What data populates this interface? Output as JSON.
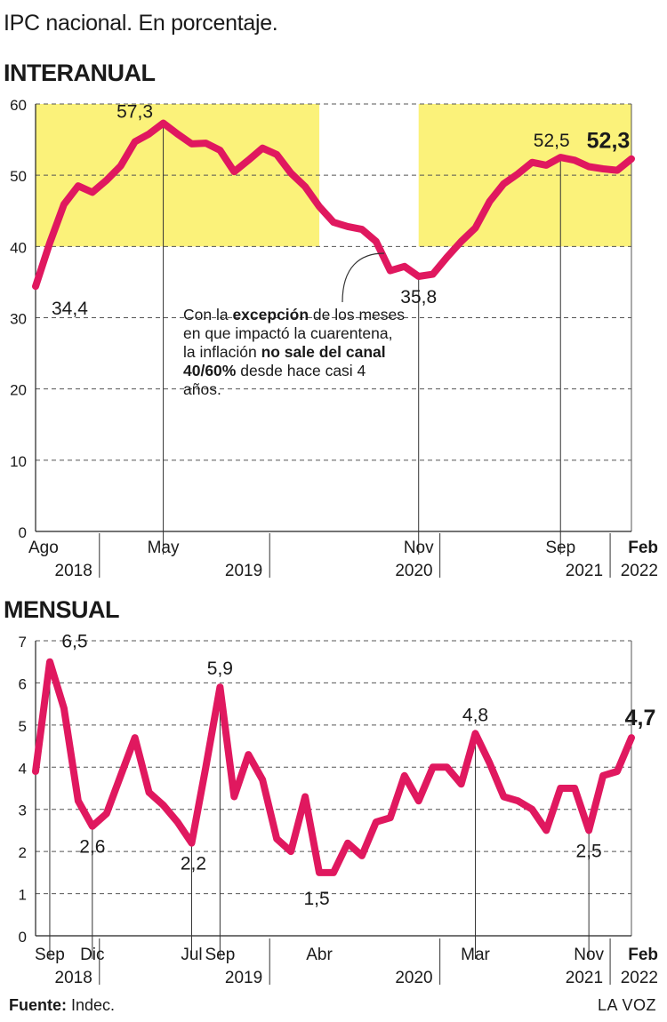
{
  "header": {
    "subtitle": "IPC nacional. En porcentaje.",
    "title_interanual": "INTERANUAL",
    "title_mensual": "MENSUAL"
  },
  "note": {
    "part1": "Con la ",
    "bold1": "excepción",
    "part2": " de los meses en que impactó la cuarentena, la inflación ",
    "bold2": "no sale del canal 40/60%",
    "part3": " desde hace casi 4 años."
  },
  "footer": {
    "source_label": "Fuente:",
    "source_value": " Indec.",
    "brand": "LA VOZ"
  },
  "colors": {
    "line": "#e0185f",
    "band": "#fbf27a",
    "grid": "#555555",
    "text": "#1a1a1a"
  },
  "chart_data": [
    {
      "type": "line",
      "name": "INTERANUAL",
      "ylim": [
        0,
        60
      ],
      "yticks": [
        0,
        10,
        20,
        30,
        40,
        50,
        60
      ],
      "bands": [
        {
          "from": "2018-08",
          "to": "2020-04",
          "y0": 40,
          "y1": 60
        },
        {
          "from": "2020-11",
          "to": "2022-02",
          "y0": 40,
          "y1": 60
        }
      ],
      "x": [
        "2018-08",
        "2018-09",
        "2018-10",
        "2018-11",
        "2018-12",
        "2019-01",
        "2019-02",
        "2019-03",
        "2019-04",
        "2019-05",
        "2019-06",
        "2019-07",
        "2019-08",
        "2019-09",
        "2019-10",
        "2019-11",
        "2019-12",
        "2020-01",
        "2020-02",
        "2020-03",
        "2020-04",
        "2020-05",
        "2020-06",
        "2020-07",
        "2020-08",
        "2020-09",
        "2020-10",
        "2020-11",
        "2020-12",
        "2021-01",
        "2021-02",
        "2021-03",
        "2021-04",
        "2021-05",
        "2021-06",
        "2021-07",
        "2021-08",
        "2021-09",
        "2021-10",
        "2021-11",
        "2021-12",
        "2022-01",
        "2022-02"
      ],
      "values": [
        34.4,
        40.5,
        45.9,
        48.5,
        47.6,
        49.3,
        51.3,
        54.7,
        55.8,
        57.3,
        55.8,
        54.4,
        54.5,
        53.5,
        50.5,
        52.1,
        53.8,
        52.9,
        50.3,
        48.4,
        45.6,
        43.4,
        42.8,
        42.4,
        40.7,
        36.6,
        37.2,
        35.8,
        36.1,
        38.5,
        40.7,
        42.6,
        46.3,
        48.8,
        50.2,
        51.8,
        51.4,
        52.5,
        52.1,
        51.2,
        50.9,
        50.7,
        52.3
      ],
      "data_labels": [
        {
          "x": "2018-08",
          "text": "34,4"
        },
        {
          "x": "2019-05",
          "text": "57,3"
        },
        {
          "x": "2020-11",
          "text": "35,8"
        },
        {
          "x": "2021-09",
          "text": "52,5"
        },
        {
          "x": "2022-02",
          "text": "52,3",
          "bold": true
        }
      ],
      "month_labels": [
        {
          "x": "2018-08",
          "text": "Ago"
        },
        {
          "x": "2019-05",
          "text": "May"
        },
        {
          "x": "2020-11",
          "text": "Nov"
        },
        {
          "x": "2021-09",
          "text": "Sep"
        },
        {
          "x": "2022-02",
          "text": "Feb",
          "bold": true
        }
      ],
      "year_labels": [
        "2018",
        "2019",
        "2020",
        "2021",
        "2022"
      ],
      "guides": [
        "2019-05",
        "2020-11",
        "2021-09"
      ]
    },
    {
      "type": "line",
      "name": "MENSUAL",
      "ylim": [
        0,
        7
      ],
      "yticks": [
        0,
        1,
        2,
        3,
        4,
        5,
        6,
        7
      ],
      "x": [
        "2018-08",
        "2018-09",
        "2018-10",
        "2018-11",
        "2018-12",
        "2019-01",
        "2019-02",
        "2019-03",
        "2019-04",
        "2019-05",
        "2019-06",
        "2019-07",
        "2019-08",
        "2019-09",
        "2019-10",
        "2019-11",
        "2019-12",
        "2020-01",
        "2020-02",
        "2020-03",
        "2020-04",
        "2020-05",
        "2020-06",
        "2020-07",
        "2020-08",
        "2020-09",
        "2020-10",
        "2020-11",
        "2020-12",
        "2021-01",
        "2021-02",
        "2021-03",
        "2021-04",
        "2021-05",
        "2021-06",
        "2021-07",
        "2021-08",
        "2021-09",
        "2021-10",
        "2021-11",
        "2021-12",
        "2022-01",
        "2022-02"
      ],
      "values": [
        3.9,
        6.5,
        5.4,
        3.2,
        2.6,
        2.9,
        3.8,
        4.7,
        3.4,
        3.1,
        2.7,
        2.2,
        4.0,
        5.9,
        3.3,
        4.3,
        3.7,
        2.3,
        2.0,
        3.3,
        1.5,
        1.5,
        2.2,
        1.9,
        2.7,
        2.8,
        3.8,
        3.2,
        4.0,
        4.0,
        3.6,
        4.8,
        4.1,
        3.3,
        3.2,
        3.0,
        2.5,
        3.5,
        3.5,
        2.5,
        3.8,
        3.9,
        4.7
      ],
      "data_labels": [
        {
          "x": "2018-09",
          "text": "6,5"
        },
        {
          "x": "2018-12",
          "text": "2,6"
        },
        {
          "x": "2019-07",
          "text": "2,2"
        },
        {
          "x": "2019-09",
          "text": "5,9"
        },
        {
          "x": "2020-04",
          "text": "1,5"
        },
        {
          "x": "2021-03",
          "text": "4,8"
        },
        {
          "x": "2021-11",
          "text": "2,5"
        },
        {
          "x": "2022-02",
          "text": "4,7",
          "bold": true
        }
      ],
      "month_labels": [
        {
          "x": "2018-09",
          "text": "Sep"
        },
        {
          "x": "2018-12",
          "text": "Dic"
        },
        {
          "x": "2019-07",
          "text": "Jul"
        },
        {
          "x": "2019-09",
          "text": "Sep"
        },
        {
          "x": "2020-04",
          "text": "Abr"
        },
        {
          "x": "2021-03",
          "text": "Mar"
        },
        {
          "x": "2021-11",
          "text": "Nov"
        },
        {
          "x": "2022-02",
          "text": "Feb",
          "bold": true
        }
      ],
      "year_labels": [
        "2018",
        "2019",
        "2020",
        "2021",
        "2022"
      ],
      "guides": [
        "2018-09",
        "2018-12",
        "2019-07",
        "2019-09",
        "2021-03",
        "2021-11"
      ]
    }
  ]
}
